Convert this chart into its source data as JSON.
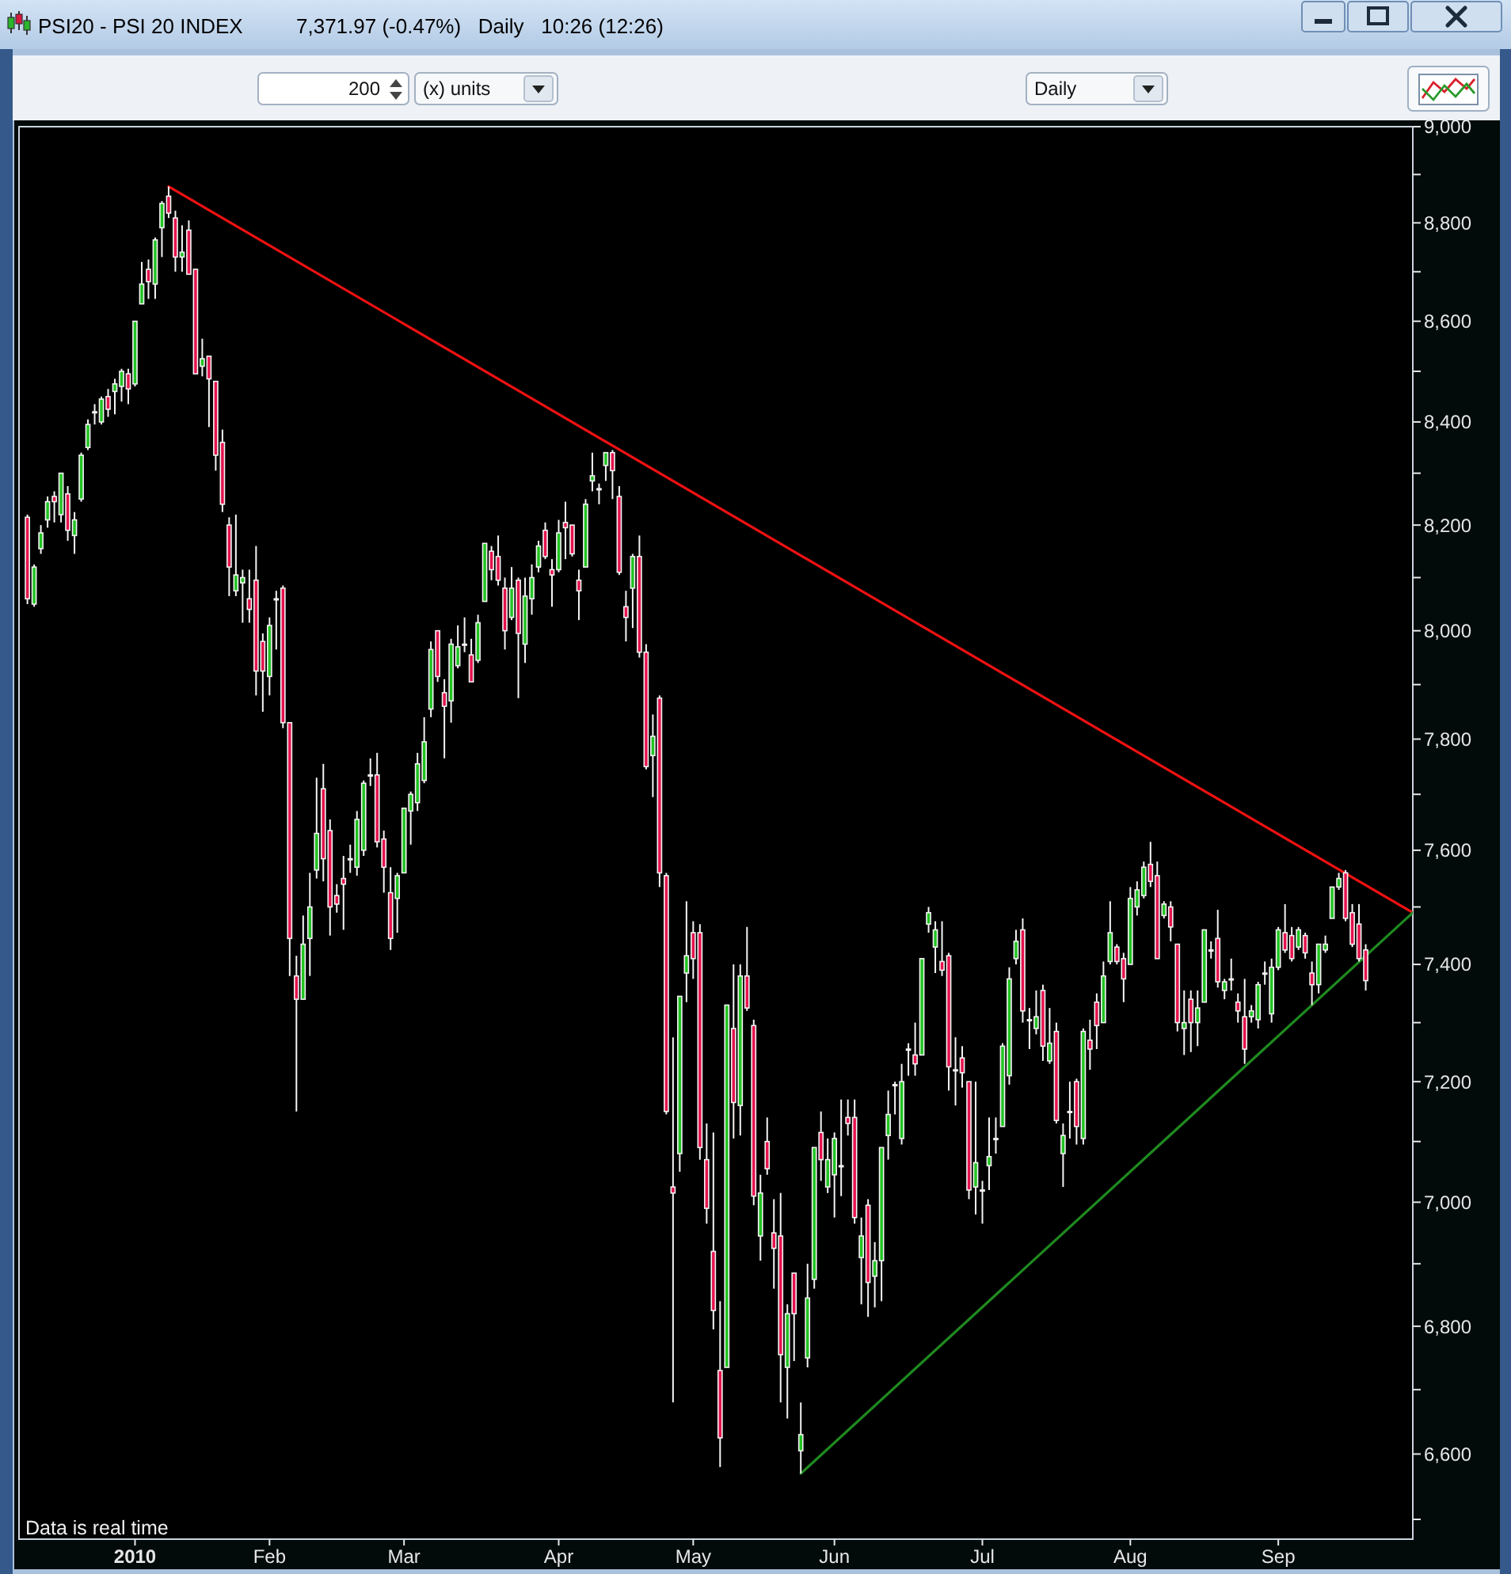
{
  "chart_data": {
    "type": "candlestick",
    "title": "PSI20 - PSI 20 INDEX",
    "subtitle": "7,371.97 (-0.47%)   Daily   10:26 (12:26)",
    "annotations": [
      "200",
      "(x) units",
      "Daily",
      "Data is real time"
    ],
    "categories": [
      null,
      null,
      null,
      null,
      null,
      null,
      null,
      null,
      null,
      null,
      null,
      null,
      null,
      null,
      null,
      null,
      "2010",
      null,
      null,
      null,
      null,
      null,
      null,
      null,
      null,
      null,
      null,
      null,
      null,
      null,
      null,
      null,
      null,
      null,
      null,
      null,
      "Feb",
      null,
      null,
      null,
      null,
      null,
      null,
      null,
      null,
      null,
      null,
      null,
      null,
      null,
      null,
      null,
      null,
      null,
      null,
      null,
      "Mar",
      null,
      null,
      null,
      null,
      null,
      null,
      null,
      null,
      null,
      null,
      null,
      null,
      null,
      null,
      null,
      null,
      null,
      null,
      null,
      null,
      null,
      null,
      "Apr",
      null,
      null,
      null,
      null,
      null,
      null,
      null,
      null,
      null,
      null,
      null,
      null,
      null,
      null,
      null,
      null,
      null,
      null,
      null,
      "May",
      null,
      null,
      null,
      null,
      null,
      null,
      null,
      null,
      null,
      null,
      null,
      null,
      null,
      null,
      null,
      null,
      null,
      null,
      null,
      null,
      "Jun",
      null,
      null,
      null,
      null,
      null,
      null,
      null,
      null,
      null,
      null,
      null,
      null,
      null,
      null,
      null,
      null,
      null,
      null,
      null,
      null,
      null,
      "Jul",
      null,
      null,
      null,
      null,
      null,
      null,
      null,
      null,
      null,
      null,
      null,
      null,
      null,
      null,
      null,
      null,
      null,
      null,
      null,
      null,
      null,
      "Aug",
      null,
      null,
      null,
      null,
      null,
      null,
      null,
      null,
      null,
      null,
      null,
      null,
      null,
      null,
      null,
      null,
      null,
      null,
      null,
      null,
      null,
      "Sep",
      null,
      null,
      null,
      null,
      null,
      null,
      null,
      null,
      null,
      null,
      null,
      null,
      null,
      null,
      null,
      null,
      null,
      null,
      null,
      null
    ],
    "ohlc": [
      [
        8215,
        8220,
        8050,
        8060
      ],
      [
        8050,
        8125,
        8045,
        8120
      ],
      [
        8155,
        8200,
        8145,
        8185
      ],
      [
        8210,
        8255,
        8195,
        8245
      ],
      [
        8255,
        8265,
        8205,
        8245
      ],
      [
        8220,
        8300,
        8205,
        8300
      ],
      [
        8260,
        8275,
        8170,
        8190
      ],
      [
        8180,
        8225,
        8145,
        8210
      ],
      [
        8250,
        8340,
        8245,
        8335
      ],
      [
        8350,
        8405,
        8345,
        8395
      ],
      [
        8420,
        8435,
        8395,
        8420
      ],
      [
        8400,
        8450,
        8395,
        8445
      ],
      [
        8450,
        8465,
        8410,
        8425
      ],
      [
        8460,
        8485,
        8415,
        8475
      ],
      [
        8470,
        8505,
        8440,
        8500
      ],
      [
        8495,
        8505,
        8435,
        8465
      ],
      [
        8475,
        8600,
        8470,
        8600
      ],
      [
        8635,
        8720,
        8635,
        8675
      ],
      [
        8705,
        8725,
        8645,
        8680
      ],
      [
        8675,
        8770,
        8645,
        8765
      ],
      [
        8790,
        8845,
        8730,
        8840
      ],
      [
        8855,
        8875,
        8810,
        8820
      ],
      [
        8810,
        8825,
        8700,
        8730
      ],
      [
        8730,
        8795,
        8700,
        8740
      ],
      [
        8785,
        8805,
        8695,
        8695
      ],
      [
        8705,
        8705,
        8495,
        8495
      ],
      [
        8510,
        8565,
        8490,
        8525
      ],
      [
        8530,
        8530,
        8390,
        8485
      ],
      [
        8480,
        8480,
        8305,
        8335
      ],
      [
        8360,
        8385,
        8225,
        8240
      ],
      [
        8200,
        8215,
        8065,
        8120
      ],
      [
        8075,
        8220,
        8065,
        8105
      ],
      [
        8090,
        8115,
        8015,
        8100
      ],
      [
        8060,
        8115,
        8015,
        8040
      ],
      [
        8095,
        8160,
        7880,
        7925
      ],
      [
        7980,
        7995,
        7850,
        7925
      ],
      [
        7915,
        8025,
        7880,
        8010
      ],
      [
        8060,
        8075,
        7965,
        8060
      ],
      [
        8080,
        8085,
        7820,
        7830
      ],
      [
        7830,
        7830,
        7380,
        7445
      ],
      [
        7380,
        7415,
        7150,
        7340
      ],
      [
        7340,
        7485,
        7340,
        7435
      ],
      [
        7445,
        7560,
        7380,
        7500
      ],
      [
        7565,
        7730,
        7550,
        7630
      ],
      [
        7710,
        7755,
        7545,
        7585
      ],
      [
        7635,
        7655,
        7450,
        7500
      ],
      [
        7520,
        7540,
        7490,
        7505
      ],
      [
        7550,
        7590,
        7460,
        7540
      ],
      [
        7585,
        7610,
        7560,
        7585
      ],
      [
        7570,
        7670,
        7555,
        7655
      ],
      [
        7600,
        7725,
        7590,
        7720
      ],
      [
        7735,
        7765,
        7715,
        7735
      ],
      [
        7735,
        7775,
        7605,
        7615
      ],
      [
        7620,
        7635,
        7525,
        7570
      ],
      [
        7525,
        7570,
        7425,
        7445
      ],
      [
        7515,
        7560,
        7455,
        7555
      ],
      [
        7560,
        7675,
        7560,
        7675
      ],
      [
        7670,
        7705,
        7610,
        7700
      ],
      [
        7685,
        7775,
        7670,
        7755
      ],
      [
        7725,
        7840,
        7720,
        7795
      ],
      [
        7855,
        7980,
        7840,
        7965
      ],
      [
        8000,
        8000,
        7905,
        7915
      ],
      [
        7885,
        7910,
        7765,
        7860
      ],
      [
        7870,
        7985,
        7830,
        7975
      ],
      [
        7935,
        8010,
        7930,
        7970
      ],
      [
        7975,
        8025,
        7960,
        7975
      ],
      [
        7955,
        7985,
        7905,
        7905
      ],
      [
        7945,
        8030,
        7940,
        8015
      ],
      [
        8055,
        8165,
        8055,
        8165
      ],
      [
        8150,
        8160,
        8095,
        8115
      ],
      [
        8140,
        8180,
        8085,
        8095
      ],
      [
        8080,
        8100,
        7965,
        8000
      ],
      [
        8025,
        8120,
        8020,
        8080
      ],
      [
        8095,
        8100,
        7875,
        7995
      ],
      [
        7975,
        8100,
        7940,
        8065
      ],
      [
        8060,
        8125,
        8030,
        8100
      ],
      [
        8120,
        8170,
        8110,
        8160
      ],
      [
        8190,
        8205,
        8135,
        8140
      ],
      [
        8115,
        8135,
        8045,
        8105
      ],
      [
        8115,
        8210,
        8110,
        8185
      ],
      [
        8205,
        8245,
        8135,
        8195
      ],
      [
        8200,
        8200,
        8140,
        8145
      ],
      [
        8095,
        8115,
        8020,
        8075
      ],
      [
        8120,
        8250,
        8120,
        8240
      ],
      [
        8285,
        8340,
        8265,
        8295
      ],
      [
        8270,
        8280,
        8240,
        8270
      ],
      [
        8315,
        8340,
        8285,
        8340
      ],
      [
        8340,
        8345,
        8250,
        8305
      ],
      [
        8255,
        8275,
        8105,
        8110
      ],
      [
        8045,
        8075,
        7980,
        8025
      ],
      [
        8080,
        8145,
        8005,
        8140
      ],
      [
        8140,
        8180,
        7950,
        7960
      ],
      [
        7960,
        7975,
        7745,
        7750
      ],
      [
        7770,
        7845,
        7695,
        7805
      ],
      [
        7875,
        7880,
        7535,
        7560
      ],
      [
        7555,
        7560,
        7145,
        7150
      ],
      [
        7025,
        7275,
        6680,
        7015
      ],
      [
        7080,
        7345,
        7050,
        7345
      ],
      [
        7385,
        7510,
        7335,
        7415
      ],
      [
        7455,
        7475,
        7375,
        7410
      ],
      [
        7455,
        7470,
        7070,
        7090
      ],
      [
        7070,
        7130,
        6965,
        6990
      ],
      [
        6920,
        7115,
        6795,
        6825
      ],
      [
        6730,
        6840,
        6580,
        6625
      ],
      [
        6735,
        7330,
        6735,
        7330
      ],
      [
        7290,
        7400,
        7105,
        7165
      ],
      [
        7160,
        7400,
        7110,
        7380
      ],
      [
        7380,
        7465,
        7320,
        7325
      ],
      [
        7295,
        7305,
        6995,
        7010
      ],
      [
        6945,
        7045,
        6905,
        7015
      ],
      [
        7100,
        7140,
        7045,
        7055
      ],
      [
        6950,
        7005,
        6860,
        6925
      ],
      [
        6945,
        7015,
        6680,
        6755
      ],
      [
        6735,
        6835,
        6655,
        6820
      ],
      [
        6885,
        6885,
        6745,
        6820
      ],
      [
        6605,
        6680,
        6570,
        6630
      ],
      [
        6750,
        6900,
        6735,
        6845
      ],
      [
        6875,
        7090,
        6860,
        7090
      ],
      [
        7115,
        7150,
        7035,
        7070
      ],
      [
        7025,
        7105,
        7015,
        7070
      ],
      [
        7045,
        7115,
        6975,
        7105
      ],
      [
        7060,
        7170,
        7010,
        7060
      ],
      [
        7140,
        7170,
        7110,
        7130
      ],
      [
        7140,
        7170,
        6965,
        6975
      ],
      [
        6910,
        6975,
        6835,
        6945
      ],
      [
        6995,
        7005,
        6815,
        6870
      ],
      [
        6880,
        6935,
        6830,
        6905
      ],
      [
        6905,
        7090,
        6840,
        7090
      ],
      [
        7110,
        7185,
        7070,
        7145
      ],
      [
        7195,
        7200,
        7145,
        7195
      ],
      [
        7105,
        7230,
        7095,
        7200
      ],
      [
        7255,
        7265,
        7210,
        7255
      ],
      [
        7245,
        7300,
        7210,
        7230
      ],
      [
        7245,
        7410,
        7245,
        7410
      ],
      [
        7470,
        7500,
        7455,
        7490
      ],
      [
        7430,
        7475,
        7385,
        7460
      ],
      [
        7405,
        7475,
        7380,
        7390
      ],
      [
        7415,
        7420,
        7185,
        7225
      ],
      [
        7220,
        7275,
        7160,
        7220
      ],
      [
        7240,
        7260,
        7190,
        7215
      ],
      [
        7200,
        7200,
        7005,
        7020
      ],
      [
        7025,
        7200,
        6980,
        7065
      ],
      [
        7020,
        7035,
        6965,
        7020
      ],
      [
        7060,
        7140,
        7020,
        7075
      ],
      [
        7105,
        7140,
        7080,
        7105
      ],
      [
        7125,
        7265,
        7125,
        7260
      ],
      [
        7210,
        7395,
        7195,
        7375
      ],
      [
        7410,
        7460,
        7400,
        7440
      ],
      [
        7460,
        7480,
        7300,
        7320
      ],
      [
        7305,
        7325,
        7255,
        7305
      ],
      [
        7290,
        7355,
        7280,
        7310
      ],
      [
        7355,
        7365,
        7235,
        7260
      ],
      [
        7235,
        7325,
        7230,
        7265
      ],
      [
        7285,
        7300,
        7130,
        7135
      ],
      [
        7080,
        7130,
        7025,
        7110
      ],
      [
        7150,
        7200,
        7105,
        7150
      ],
      [
        7200,
        7205,
        7095,
        7125
      ],
      [
        7105,
        7290,
        7095,
        7285
      ],
      [
        7270,
        7305,
        7220,
        7255
      ],
      [
        7335,
        7350,
        7255,
        7295
      ],
      [
        7300,
        7405,
        7300,
        7380
      ],
      [
        7405,
        7510,
        7400,
        7455
      ],
      [
        7430,
        7435,
        7400,
        7405
      ],
      [
        7410,
        7420,
        7335,
        7375
      ],
      [
        7400,
        7535,
        7400,
        7515
      ],
      [
        7500,
        7545,
        7485,
        7530
      ],
      [
        7520,
        7580,
        7515,
        7570
      ],
      [
        7575,
        7615,
        7535,
        7545
      ],
      [
        7555,
        7580,
        7410,
        7410
      ],
      [
        7485,
        7510,
        7480,
        7505
      ],
      [
        7500,
        7510,
        7440,
        7465
      ],
      [
        7435,
        7435,
        7285,
        7300
      ],
      [
        7290,
        7355,
        7245,
        7300
      ],
      [
        7340,
        7355,
        7250,
        7300
      ],
      [
        7300,
        7355,
        7260,
        7325
      ],
      [
        7335,
        7460,
        7335,
        7460
      ],
      [
        7425,
        7440,
        7410,
        7425
      ],
      [
        7445,
        7495,
        7360,
        7370
      ],
      [
        7355,
        7375,
        7340,
        7370
      ],
      [
        7375,
        7410,
        7355,
        7375
      ],
      [
        7335,
        7350,
        7300,
        7320
      ],
      [
        7310,
        7375,
        7230,
        7255
      ],
      [
        7310,
        7330,
        7300,
        7320
      ],
      [
        7305,
        7370,
        7290,
        7365
      ],
      [
        7385,
        7405,
        7365,
        7385
      ],
      [
        7315,
        7410,
        7300,
        7395
      ],
      [
        7395,
        7465,
        7390,
        7460
      ],
      [
        7455,
        7505,
        7420,
        7425
      ],
      [
        7450,
        7465,
        7405,
        7410
      ],
      [
        7430,
        7465,
        7425,
        7460
      ],
      [
        7450,
        7455,
        7410,
        7420
      ],
      [
        7385,
        7405,
        7330,
        7365
      ],
      [
        7365,
        7435,
        7350,
        7435
      ],
      [
        7425,
        7450,
        7420,
        7435
      ],
      [
        7480,
        7535,
        7480,
        7535
      ],
      [
        7535,
        7560,
        7530,
        7550
      ],
      [
        7560,
        7565,
        7475,
        7480
      ],
      [
        7490,
        7505,
        7430,
        7435
      ],
      [
        7470,
        7505,
        7405,
        7410
      ],
      [
        7425,
        7435,
        7355,
        7372
      ],
      null,
      null,
      null,
      null,
      null,
      null,
      null
    ],
    "colors": [
      "#e5134d",
      "#22c322",
      "#22c322",
      "#22c322",
      "#e5134d",
      "#22c322",
      "#e5134d",
      "#22c322",
      "#22c322",
      "#22c322",
      "#ffffff",
      "#22c322",
      "#e5134d",
      "#22c322",
      "#22c322",
      "#e5134d",
      "#22c322",
      "#22c322",
      "#e5134d",
      "#22c322",
      "#22c322",
      "#e5134d",
      "#e5134d",
      "#22c322",
      "#e5134d",
      "#e5134d",
      "#22c322",
      "#e5134d",
      "#e5134d",
      "#e5134d",
      "#e5134d",
      "#22c322",
      "#22c322",
      "#e5134d",
      "#e5134d",
      "#e5134d",
      "#22c322",
      "#ffffff",
      "#e5134d",
      "#e5134d",
      "#e5134d",
      "#22c322",
      "#22c322",
      "#22c322",
      "#e5134d",
      "#e5134d",
      "#e5134d",
      "#e5134d",
      "#ffffff",
      "#22c322",
      "#22c322",
      "#ffffff",
      "#e5134d",
      "#e5134d",
      "#e5134d",
      "#22c322",
      "#22c322",
      "#22c322",
      "#22c322",
      "#22c322",
      "#22c322",
      "#e5134d",
      "#e5134d",
      "#22c322",
      "#22c322",
      "#ffffff",
      "#e5134d",
      "#22c322",
      "#22c322",
      "#e5134d",
      "#e5134d",
      "#e5134d",
      "#22c322",
      "#e5134d",
      "#22c322",
      "#22c322",
      "#22c322",
      "#e5134d",
      "#e5134d",
      "#22c322",
      "#e5134d",
      "#e5134d",
      "#e5134d",
      "#22c322",
      "#22c322",
      "#ffffff",
      "#22c322",
      "#e5134d",
      "#e5134d",
      "#e5134d",
      "#22c322",
      "#e5134d",
      "#e5134d",
      "#22c322",
      "#e5134d",
      "#e5134d",
      "#e5134d",
      "#22c322",
      "#22c322",
      "#e5134d",
      "#e5134d",
      "#e5134d",
      "#e5134d",
      "#e5134d",
      "#22c322",
      "#e5134d",
      "#22c322",
      "#e5134d",
      "#e5134d",
      "#22c322",
      "#e5134d",
      "#e5134d",
      "#e5134d",
      "#22c322",
      "#e5134d",
      "#22c322",
      "#22c322",
      "#22c322",
      "#e5134d",
      "#22c322",
      "#22c322",
      "#ffffff",
      "#e5134d",
      "#e5134d",
      "#22c322",
      "#e5134d",
      "#22c322",
      "#22c322",
      "#22c322",
      "#ffffff",
      "#22c322",
      "#ffffff",
      "#e5134d",
      "#22c322",
      "#22c322",
      "#22c322",
      "#e5134d",
      "#e5134d",
      "#ffffff",
      "#e5134d",
      "#e5134d",
      "#22c322",
      "#ffffff",
      "#22c322",
      "#ffffff",
      "#22c322",
      "#22c322",
      "#22c322",
      "#e5134d",
      "#ffffff",
      "#22c322",
      "#e5134d",
      "#22c322",
      "#e5134d",
      "#22c322",
      "#ffffff",
      "#e5134d",
      "#22c322",
      "#e5134d",
      "#e5134d",
      "#22c322",
      "#22c322",
      "#e5134d",
      "#e5134d",
      "#22c322",
      "#22c322",
      "#22c322",
      "#e5134d",
      "#e5134d",
      "#22c322",
      "#e5134d",
      "#e5134d",
      "#22c322",
      "#e5134d",
      "#22c322",
      "#22c322",
      "#ffffff",
      "#e5134d",
      "#22c322",
      "#ffffff",
      "#e5134d",
      "#e5134d",
      "#22c322",
      "#22c322",
      "#ffffff",
      "#22c322",
      "#22c322",
      "#e5134d",
      "#e5134d",
      "#22c322",
      "#e5134d",
      "#e5134d",
      "#22c322",
      "#22c322",
      "#22c322",
      "#22c322",
      "#e5134d",
      "#e5134d",
      "#e5134d",
      "#e5134d",
      null,
      null,
      null,
      null,
      null,
      null,
      null
    ],
    "series": [
      {
        "type": "line",
        "color": "#ee1111",
        "values": [
          null,
          null,
          null,
          null,
          null,
          null,
          null,
          null,
          null,
          null,
          null,
          null,
          null,
          null,
          null,
          null,
          null,
          null,
          null,
          null,
          null,
          8875,
          null,
          null,
          null,
          null,
          null,
          null,
          null,
          null,
          null,
          null,
          null,
          null,
          null,
          null,
          null,
          null,
          null,
          null,
          null,
          null,
          null,
          null,
          null,
          null,
          null,
          null,
          null,
          null,
          null,
          null,
          null,
          null,
          null,
          null,
          null,
          null,
          null,
          null,
          null,
          null,
          null,
          null,
          null,
          null,
          null,
          null,
          null,
          null,
          null,
          null,
          null,
          null,
          null,
          null,
          null,
          null,
          null,
          null,
          null,
          null,
          null,
          null,
          null,
          null,
          null,
          null,
          null,
          null,
          null,
          null,
          null,
          null,
          null,
          null,
          null,
          null,
          null,
          null,
          null,
          null,
          null,
          null,
          null,
          null,
          null,
          null,
          null,
          null,
          null,
          null,
          null,
          null,
          null,
          null,
          null,
          null,
          null,
          null,
          null,
          null,
          null,
          null,
          null,
          null,
          null,
          null,
          null,
          null,
          null,
          null,
          null,
          null,
          null,
          null,
          null,
          null,
          null,
          null,
          null,
          null,
          null,
          null,
          null,
          null,
          null,
          null,
          null,
          null,
          null,
          null,
          null,
          null,
          null,
          null,
          null,
          null,
          null,
          null,
          null,
          null,
          null,
          null,
          null,
          null,
          null,
          null,
          null,
          null,
          null,
          null,
          null,
          null,
          null,
          null,
          null,
          null,
          null,
          null,
          null,
          null,
          null,
          null,
          null,
          null,
          null,
          null,
          null,
          null,
          null,
          null,
          null,
          null,
          null,
          null,
          null,
          null,
          null,
          null,
          null,
          null,
          null,
          null,
          null,
          null,
          7490
        ]
      },
      {
        "type": "line",
        "color": "#1f8a1f",
        "values": [
          null,
          null,
          null,
          null,
          null,
          null,
          null,
          null,
          null,
          null,
          null,
          null,
          null,
          null,
          null,
          null,
          null,
          null,
          null,
          null,
          null,
          null,
          null,
          null,
          null,
          null,
          null,
          null,
          null,
          null,
          null,
          null,
          null,
          null,
          null,
          null,
          null,
          null,
          null,
          null,
          null,
          null,
          null,
          null,
          null,
          null,
          null,
          null,
          null,
          null,
          null,
          null,
          null,
          null,
          null,
          null,
          null,
          null,
          null,
          null,
          null,
          null,
          null,
          null,
          null,
          null,
          null,
          null,
          null,
          null,
          null,
          null,
          null,
          null,
          null,
          null,
          null,
          null,
          null,
          null,
          null,
          null,
          null,
          null,
          null,
          null,
          null,
          null,
          null,
          null,
          null,
          null,
          null,
          null,
          null,
          null,
          null,
          null,
          null,
          null,
          null,
          null,
          null,
          null,
          null,
          null,
          null,
          null,
          null,
          null,
          null,
          null,
          null,
          null,
          null,
          6570,
          null,
          null,
          null,
          null,
          null,
          null,
          null,
          null,
          null,
          null,
          null,
          null,
          null,
          null,
          null,
          null,
          null,
          null,
          null,
          null,
          null,
          null,
          null,
          null,
          null,
          null,
          null,
          null,
          null,
          null,
          null,
          null,
          null,
          null,
          null,
          null,
          null,
          null,
          null,
          null,
          null,
          null,
          null,
          null,
          null,
          null,
          null,
          null,
          null,
          null,
          null,
          null,
          null,
          null,
          null,
          null,
          null,
          null,
          null,
          null,
          null,
          null,
          null,
          null,
          null,
          null,
          null,
          null,
          null,
          null,
          null,
          null,
          null,
          null,
          null,
          null,
          null,
          null,
          null,
          null,
          null,
          null,
          null,
          null,
          null,
          null,
          null,
          null,
          null,
          null,
          7490
        ]
      }
    ],
    "ylim": [
      6470,
      9000
    ],
    "yticks": [
      {
        "value": 6500,
        "label": null
      },
      {
        "value": 6600,
        "label": "6,600"
      },
      {
        "value": 6700,
        "label": null
      },
      {
        "value": 6800,
        "label": "6,800"
      },
      {
        "value": 6900,
        "label": null
      },
      {
        "value": 7000,
        "label": "7,000"
      },
      {
        "value": 7100,
        "label": null
      },
      {
        "value": 7200,
        "label": "7,200"
      },
      {
        "value": 7300,
        "label": null
      },
      {
        "value": 7400,
        "label": "7,400"
      },
      {
        "value": 7500,
        "label": null
      },
      {
        "value": 7600,
        "label": "7,600"
      },
      {
        "value": 7700,
        "label": null
      },
      {
        "value": 7800,
        "label": "7,800"
      },
      {
        "value": 7900,
        "label": null
      },
      {
        "value": 8000,
        "label": "8,000"
      },
      {
        "value": 8100,
        "label": null
      },
      {
        "value": 8200,
        "label": "8,200"
      },
      {
        "value": 8300,
        "label": null
      },
      {
        "value": 8400,
        "label": "8,400"
      },
      {
        "value": 8500,
        "label": null
      },
      {
        "value": 8600,
        "label": "8,600"
      },
      {
        "value": 8700,
        "label": null
      },
      {
        "value": 8800,
        "label": "8,800"
      },
      {
        "value": 8900,
        "label": null
      },
      {
        "value": 9000,
        "label": "9,000"
      }
    ],
    "log": true
  }
}
